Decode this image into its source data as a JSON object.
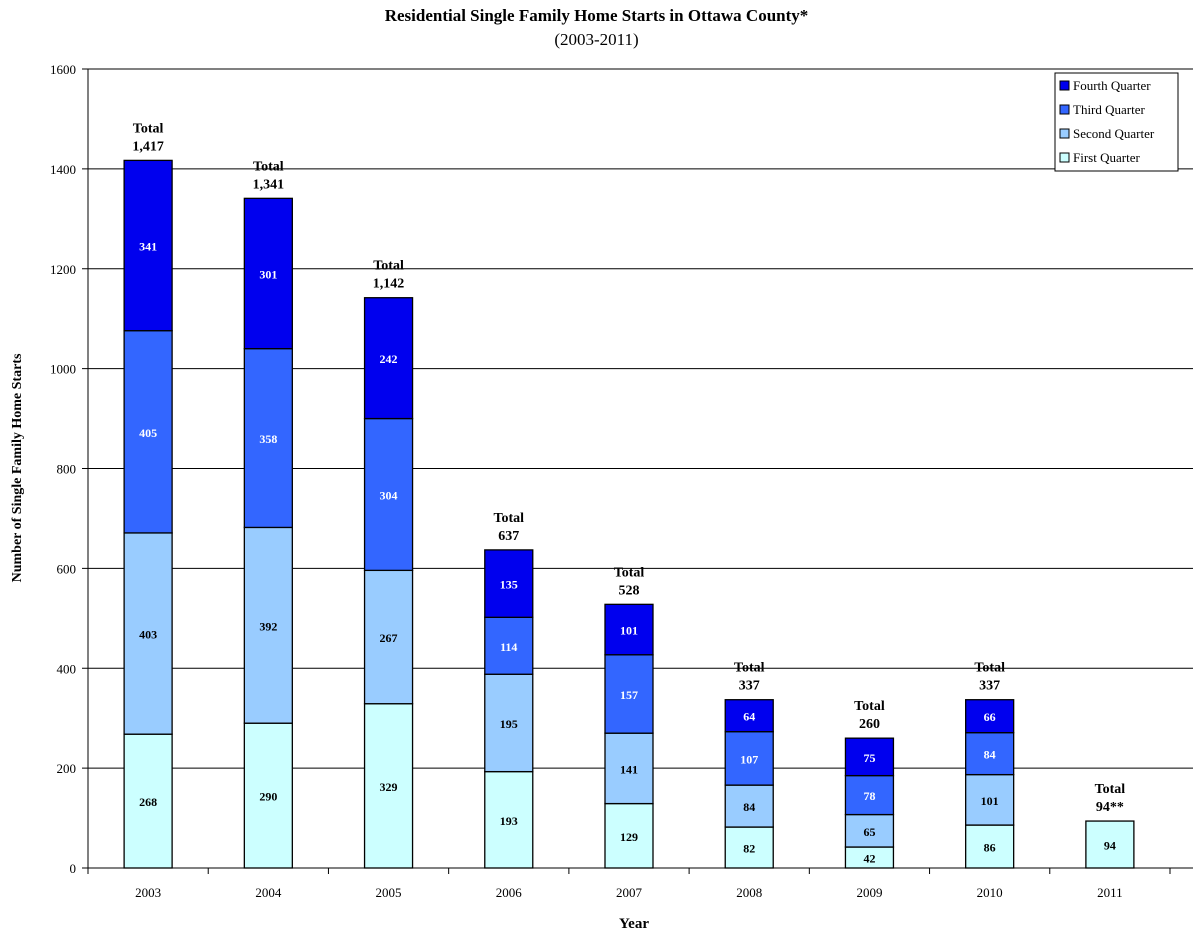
{
  "chart_data": {
    "type": "bar",
    "stacked": true,
    "title": "Residential Single Family Home Starts in Ottawa County*",
    "subtitle": "(2003-2011)",
    "xlabel": "Year",
    "ylabel": "Number of Single Family Home Starts",
    "ylim": [
      0,
      1600
    ],
    "yticks": [
      "0",
      "200",
      "400",
      "600",
      "800",
      "1000",
      "1200",
      "1400",
      "1600"
    ],
    "grid": true,
    "legend_position": "top-right",
    "categories": [
      "2003",
      "2004",
      "2005",
      "2006",
      "2007",
      "2008",
      "2009",
      "2010",
      "2011"
    ],
    "series": [
      {
        "name": "First Quarter",
        "color": "#ccffff",
        "label_color": "#000000",
        "values": [
          268,
          290,
          329,
          193,
          129,
          82,
          42,
          86,
          94
        ]
      },
      {
        "name": "Second Quarter",
        "color": "#99ccff",
        "label_color": "#000000",
        "values": [
          403,
          392,
          267,
          195,
          141,
          84,
          65,
          101,
          null
        ]
      },
      {
        "name": "Third Quarter",
        "color": "#3366ff",
        "label_color": "#ffffff",
        "values": [
          405,
          358,
          304,
          114,
          157,
          107,
          78,
          84,
          null
        ]
      },
      {
        "name": "Fourth Quarter",
        "color": "#0000ee",
        "label_color": "#ffffff",
        "values": [
          341,
          301,
          242,
          135,
          101,
          64,
          75,
          66,
          null
        ]
      }
    ],
    "totals": [
      {
        "label": "Total",
        "value": "1,417"
      },
      {
        "label": "Total",
        "value": "1,341"
      },
      {
        "label": "Total",
        "value": "1,142"
      },
      {
        "label": "Total",
        "value": "637"
      },
      {
        "label": "Total",
        "value": "528"
      },
      {
        "label": "Total",
        "value": "337"
      },
      {
        "label": "Total",
        "value": "260"
      },
      {
        "label": "Total",
        "value": "337"
      },
      {
        "label": "Total",
        "value": "94**"
      }
    ]
  }
}
